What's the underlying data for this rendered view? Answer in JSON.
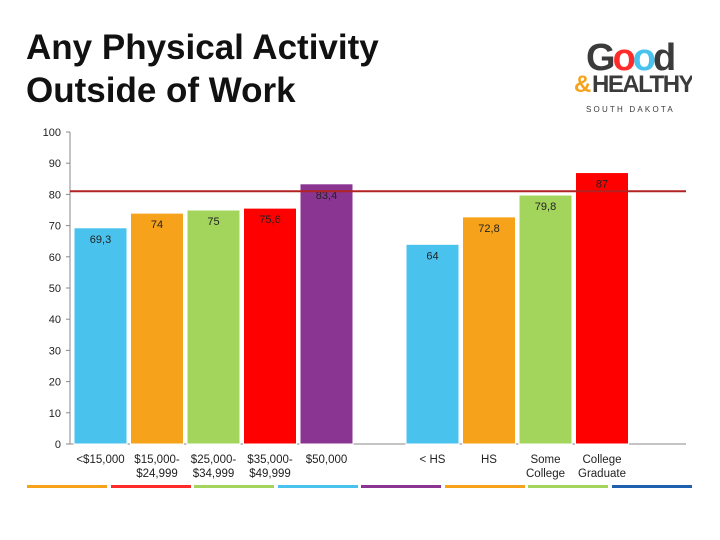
{
  "title_lines": [
    "Any Physical Activity",
    "Outside of Work"
  ],
  "logo": {
    "word_top": "Good",
    "word_bottom_prefix": "&",
    "word_bottom": "HEALTHY",
    "tagline": "SOUTH DAKOTA",
    "colors": {
      "dark": "#3b3b3b",
      "o1": "#ff2b2b",
      "o2": "#49c3ee",
      "o3": "#a3d55d",
      "amp": "#f7a21b"
    }
  },
  "chart_data": {
    "type": "bar",
    "ylim": [
      0,
      100
    ],
    "yticks": [
      0,
      10,
      20,
      30,
      40,
      50,
      60,
      70,
      80,
      90,
      100
    ],
    "grid": false,
    "reference_line": {
      "value": 81,
      "color": "#b22222"
    },
    "groups": [
      {
        "bars": [
          {
            "label_lines": [
              "<$15,000"
            ],
            "value": 69.3,
            "value_label": "69,3",
            "color": "#49c3ee"
          },
          {
            "label_lines": [
              "$15,000-",
              "$24,999"
            ],
            "value": 74,
            "value_label": "74",
            "color": "#f7a21b"
          },
          {
            "label_lines": [
              "$25,000-",
              "$34,999"
            ],
            "value": 75,
            "value_label": "75",
            "color": "#a3d55d"
          },
          {
            "label_lines": [
              "$35,000-",
              "$49,999"
            ],
            "value": 75.6,
            "value_label": "75,6",
            "color": "#ff0000"
          },
          {
            "label_lines": [
              "$50,000"
            ],
            "value": 83.4,
            "value_label": "83,4",
            "color": "#8b3593"
          }
        ]
      },
      {
        "bars": [
          {
            "label_lines": [
              "< HS"
            ],
            "value": 64,
            "value_label": "64",
            "color": "#49c3ee"
          },
          {
            "label_lines": [
              "HS"
            ],
            "value": 72.8,
            "value_label": "72,8",
            "color": "#f7a21b"
          },
          {
            "label_lines": [
              "Some",
              "College"
            ],
            "value": 79.8,
            "value_label": "79,8",
            "color": "#a3d55d"
          },
          {
            "label_lines": [
              "College",
              "Graduate"
            ],
            "value": 87,
            "value_label": "87",
            "color": "#ff0000"
          }
        ]
      }
    ]
  },
  "footer_stripe_colors": [
    "#f7a21b",
    "#ff2b2b",
    "#a3d55d",
    "#49c3ee",
    "#8b3593",
    "#f7a21b",
    "#a3d55d",
    "#1f5fb0"
  ]
}
